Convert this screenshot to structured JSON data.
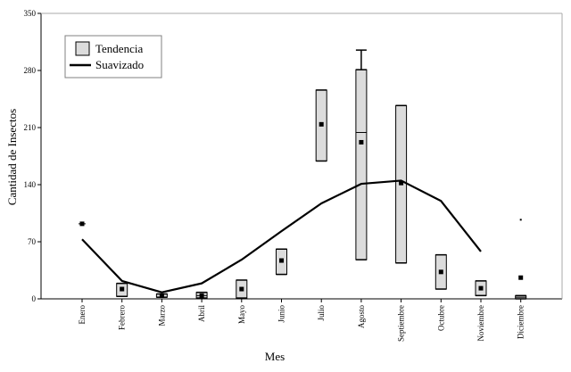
{
  "chart_data": {
    "type": "box",
    "xlabel": "Mes",
    "ylabel": "Cantidad de Insectos",
    "ylim": [
      0,
      350
    ],
    "yticks": [
      0,
      70,
      140,
      210,
      280,
      350
    ],
    "categories": [
      "Enero",
      "Febrero",
      "Marzo",
      "Abril",
      "Mayo",
      "Junio",
      "Julio",
      "Agosto",
      "Septiembre",
      "Octubre",
      "Noviembre",
      "Diciembre"
    ],
    "legend": {
      "position": "top-left",
      "box_label": "Tendencia",
      "line_label": "Suavizado"
    },
    "boxes": [
      {
        "category": "Enero",
        "q1": null,
        "median": null,
        "q3": null,
        "whisker_low": null,
        "whisker_high": null,
        "mean": 92,
        "outliers": []
      },
      {
        "category": "Febrero",
        "q1": 3,
        "median": 3,
        "q3": 19,
        "whisker_low": null,
        "whisker_high": null,
        "mean": 12,
        "outliers": []
      },
      {
        "category": "Marzo",
        "q1": 2,
        "median": 2,
        "q3": 6,
        "whisker_low": null,
        "whisker_high": null,
        "mean": 4,
        "outliers": []
      },
      {
        "category": "Abril",
        "q1": 1,
        "median": 4,
        "q3": 8,
        "whisker_low": null,
        "whisker_high": null,
        "mean": 4,
        "outliers": []
      },
      {
        "category": "Mayo",
        "q1": 1,
        "median": 1,
        "q3": 23,
        "whisker_low": null,
        "whisker_high": null,
        "mean": 12,
        "outliers": []
      },
      {
        "category": "Junio",
        "q1": 30,
        "median": 30,
        "q3": 61,
        "whisker_low": null,
        "whisker_high": null,
        "mean": 47,
        "outliers": []
      },
      {
        "category": "Julio",
        "q1": 169,
        "median": 169,
        "q3": 256,
        "whisker_low": null,
        "whisker_high": null,
        "mean": 214,
        "outliers": []
      },
      {
        "category": "Agosto",
        "q1": 48,
        "median": 204,
        "q3": 281,
        "whisker_low": null,
        "whisker_high": 305,
        "mean": 192,
        "outliers": []
      },
      {
        "category": "Septiembre",
        "q1": 44,
        "median": 44,
        "q3": 237,
        "whisker_low": null,
        "whisker_high": null,
        "mean": 142,
        "outliers": []
      },
      {
        "category": "Octubre",
        "q1": 12,
        "median": 12,
        "q3": 54,
        "whisker_low": null,
        "whisker_high": null,
        "mean": 33,
        "outliers": []
      },
      {
        "category": "Noviembre",
        "q1": 4,
        "median": 4,
        "q3": 22,
        "whisker_low": null,
        "whisker_high": null,
        "mean": 13,
        "outliers": []
      },
      {
        "category": "Diciembre",
        "q1": 0,
        "median": 2,
        "q3": 4,
        "whisker_low": null,
        "whisker_high": null,
        "mean": 26,
        "outliers": [
          97
        ]
      }
    ],
    "series": [
      {
        "name": "Suavizado",
        "type": "line",
        "values": [
          73,
          22,
          8,
          19,
          48,
          83,
          117,
          141,
          145,
          120,
          58,
          null
        ]
      }
    ],
    "colors": {
      "box_fill": "#dcdcdc",
      "line": "#000000",
      "axes": "#000000",
      "grid": "#a9a9a9"
    },
    "grid": false
  }
}
